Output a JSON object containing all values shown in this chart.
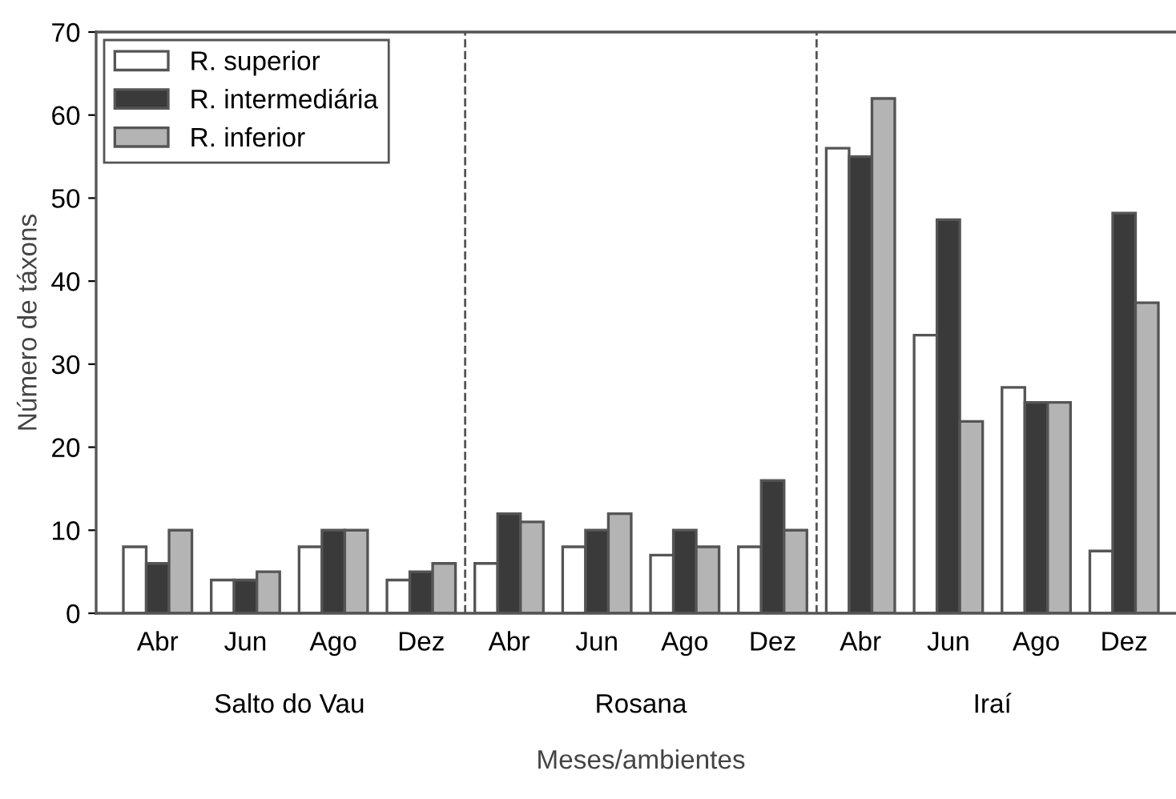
{
  "chart_data": {
    "type": "bar",
    "ylabel": "Número de táxons",
    "xlabel": "Meses/ambientes",
    "categories": [
      "Abr",
      "Jun",
      "Ago",
      "Dez",
      "Abr",
      "Jun",
      "Ago",
      "Dez",
      "Abr",
      "Jun",
      "Ago",
      "Dez"
    ],
    "series": [
      {
        "name": "R. superior",
        "color": "#ffffff",
        "values": [
          8,
          4,
          8,
          4,
          6,
          8,
          7,
          8,
          56,
          33.5,
          27.2,
          7.5
        ]
      },
      {
        "name": "R. intermediária",
        "color": "#3a3a3a",
        "values": [
          6,
          4,
          10,
          5,
          12,
          10,
          10,
          16,
          55,
          47.4,
          25.4,
          48.2
        ]
      },
      {
        "name": "R. inferior",
        "color": "#b4b4b4",
        "values": [
          10,
          5,
          10,
          6,
          11,
          12,
          8,
          10,
          62,
          23.1,
          25.4,
          37.4
        ]
      }
    ],
    "ylim": [
      0,
      70
    ],
    "yticks": [
      0,
      10,
      20,
      30,
      40,
      50,
      60,
      70
    ],
    "annotations": [
      "Salto do Vau",
      "Rosana",
      "Iraí"
    ],
    "legend": "top left",
    "grid": false
  }
}
